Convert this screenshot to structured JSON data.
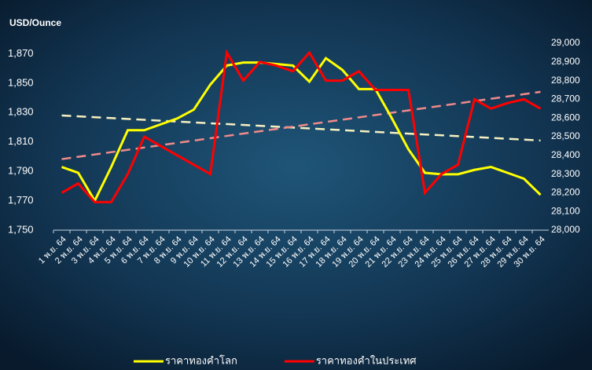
{
  "chart_data": {
    "type": "line",
    "y_axis_label": "USD/Ounce",
    "categories": [
      "1 พ.ย. 64",
      "2 พ.ย. 64",
      "3 พ.ย. 64",
      "4 พ.ย. 64",
      "5 พ.ย. 64",
      "6 พ.ย. 64",
      "7 พ.ย. 64",
      "8 พ.ย. 64",
      "9 พ.ย. 64",
      "10 พ.ย. 64",
      "11 พ.ย. 64",
      "12 พ.ย. 64",
      "13 พ.ย. 64",
      "14 พ.ย. 64",
      "15 พ.ย. 64",
      "16 พ.ย. 64",
      "17 พ.ย. 64",
      "18 พ.ย. 64",
      "19 พ.ย. 64",
      "20 พ.ย. 64",
      "21 พ.ย. 64",
      "22 พ.ย. 64",
      "23 พ.ย. 64",
      "24 พ.ย. 64",
      "25 พ.ย. 64",
      "26 พ.ย. 64",
      "27 พ.ย. 64",
      "28 พ.ย. 64",
      "29 พ.ย. 64",
      "30 พ.ย. 64"
    ],
    "series": [
      {
        "name": "ราคาทองคำโลก",
        "color": "#ffff00",
        "axis": "y",
        "values": [
          1793,
          1789,
          1770,
          1793,
          1818,
          1818,
          1822,
          1826,
          1832,
          1849,
          1862,
          1864,
          1864,
          1863,
          1862,
          1851,
          1867,
          1859,
          1846,
          1846,
          1826,
          1805,
          1789,
          1788,
          1788,
          1791,
          1793,
          1789,
          1785,
          1774
        ]
      },
      {
        "name": "ราคาทองคำในประเทศ",
        "color": "#ff0000",
        "axis": "y2",
        "values": [
          28200,
          28250,
          28150,
          28150,
          28300,
          28500,
          28450,
          28400,
          28350,
          28300,
          28950,
          28800,
          28900,
          28880,
          28850,
          28950,
          28800,
          28800,
          28850,
          28750,
          28750,
          28750,
          28200,
          28300,
          28350,
          28700,
          28650,
          28680,
          28700,
          28650
        ]
      }
    ],
    "trendlines": [
      {
        "color": "#f5f0c0",
        "axis": "y",
        "values": [
          1828,
          1811
        ]
      },
      {
        "color": "#f08a8a",
        "axis": "y2",
        "values": [
          28380,
          28740
        ]
      }
    ],
    "ylim": [
      1750,
      1890
    ],
    "yticks": [
      {
        "value": 1750,
        "label": "1,750"
      },
      {
        "value": 1770,
        "label": "1,770"
      },
      {
        "value": 1790,
        "label": "1,790"
      },
      {
        "value": 1810,
        "label": "1,810"
      },
      {
        "value": 1830,
        "label": "1,830"
      },
      {
        "value": 1850,
        "label": "1,850"
      },
      {
        "value": 1870,
        "label": "1,870"
      }
    ],
    "y2lim": [
      28000,
      29000
    ],
    "y2ticks": [
      {
        "value": 28000,
        "label": "28,000"
      },
      {
        "value": 28100,
        "label": "28,100"
      },
      {
        "value": 28200,
        "label": "28,200"
      },
      {
        "value": 28300,
        "label": "28,300"
      },
      {
        "value": 28400,
        "label": "28,400"
      },
      {
        "value": 28500,
        "label": "28,500"
      },
      {
        "value": 28600,
        "label": "28,600"
      },
      {
        "value": 28700,
        "label": "28,700"
      },
      {
        "value": 28800,
        "label": "28,800"
      },
      {
        "value": 28900,
        "label": "28,900"
      },
      {
        "value": 29000,
        "label": "29,000"
      }
    ],
    "legend": "bottom"
  }
}
